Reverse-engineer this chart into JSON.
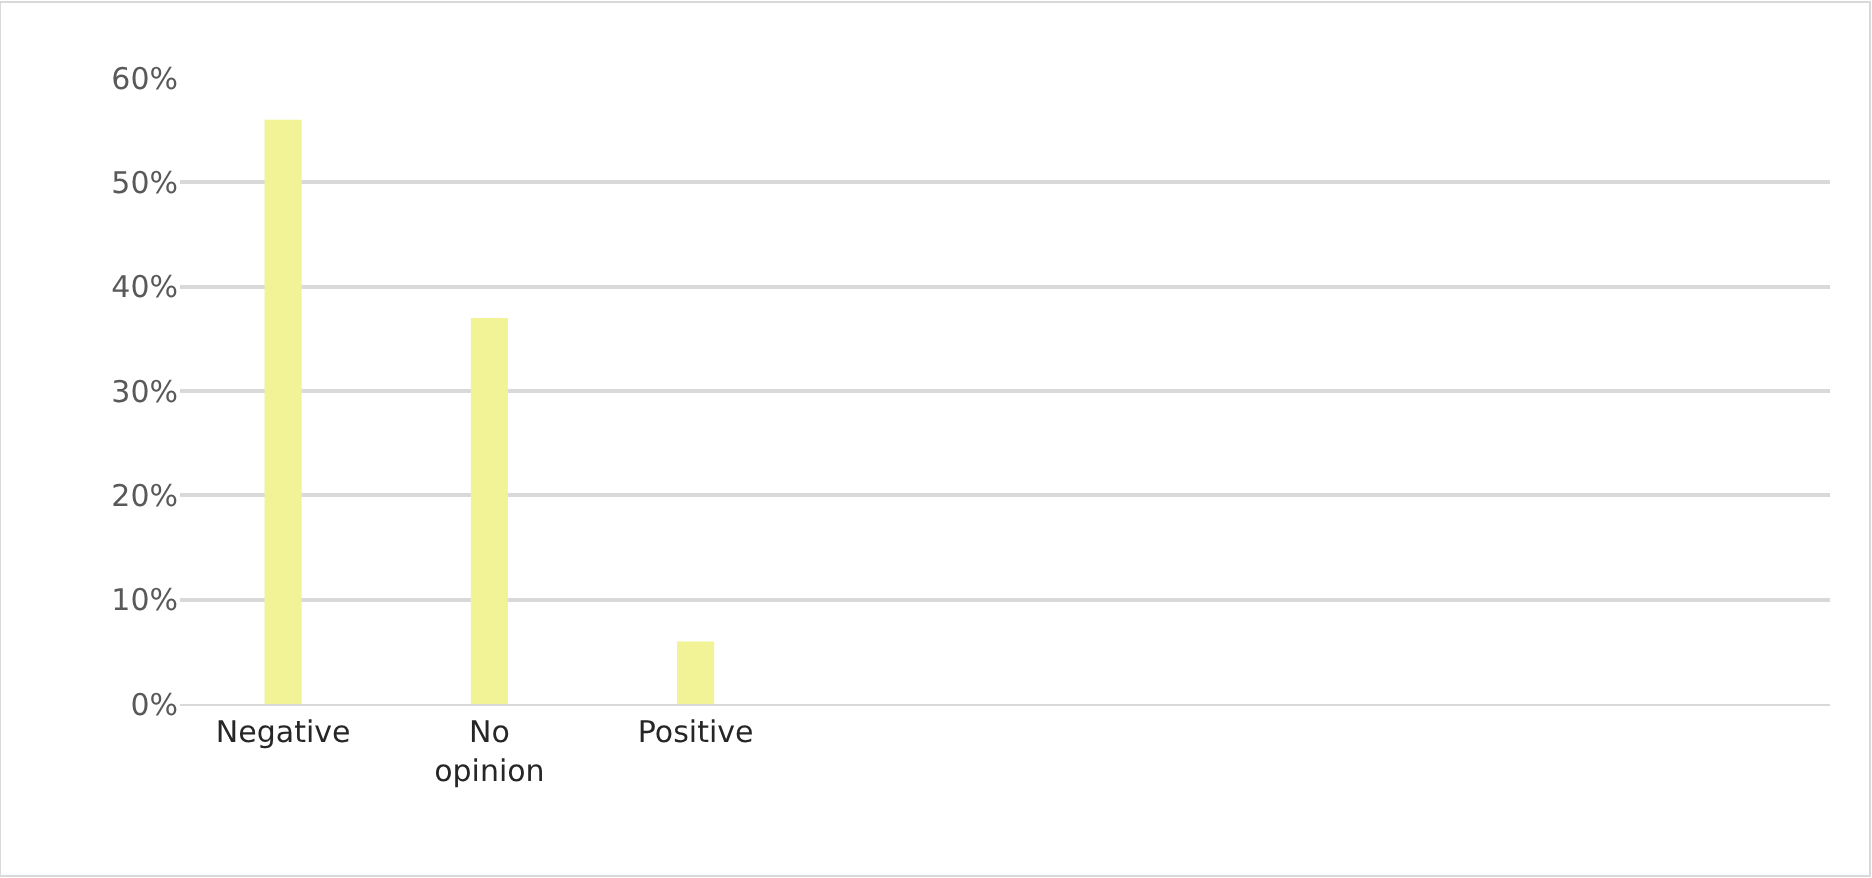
{
  "chart_data": {
    "type": "bar",
    "categories": [
      "Negative",
      "No opinion",
      "Positive",
      null,
      null,
      null,
      null,
      null
    ],
    "values": [
      56,
      37,
      6,
      null,
      null,
      null,
      null,
      null
    ],
    "color": "#f2f296",
    "ylim": [
      0,
      60
    ],
    "yticks": [
      {
        "value": 0,
        "label": "0%"
      },
      {
        "value": 10,
        "label": "10%"
      },
      {
        "value": 20,
        "label": "20%"
      },
      {
        "value": 30,
        "label": "30%"
      },
      {
        "value": 40,
        "label": "40%"
      },
      {
        "value": 50,
        "label": "50%"
      },
      {
        "value": 60,
        "label": "60%"
      }
    ],
    "grid": "y"
  }
}
